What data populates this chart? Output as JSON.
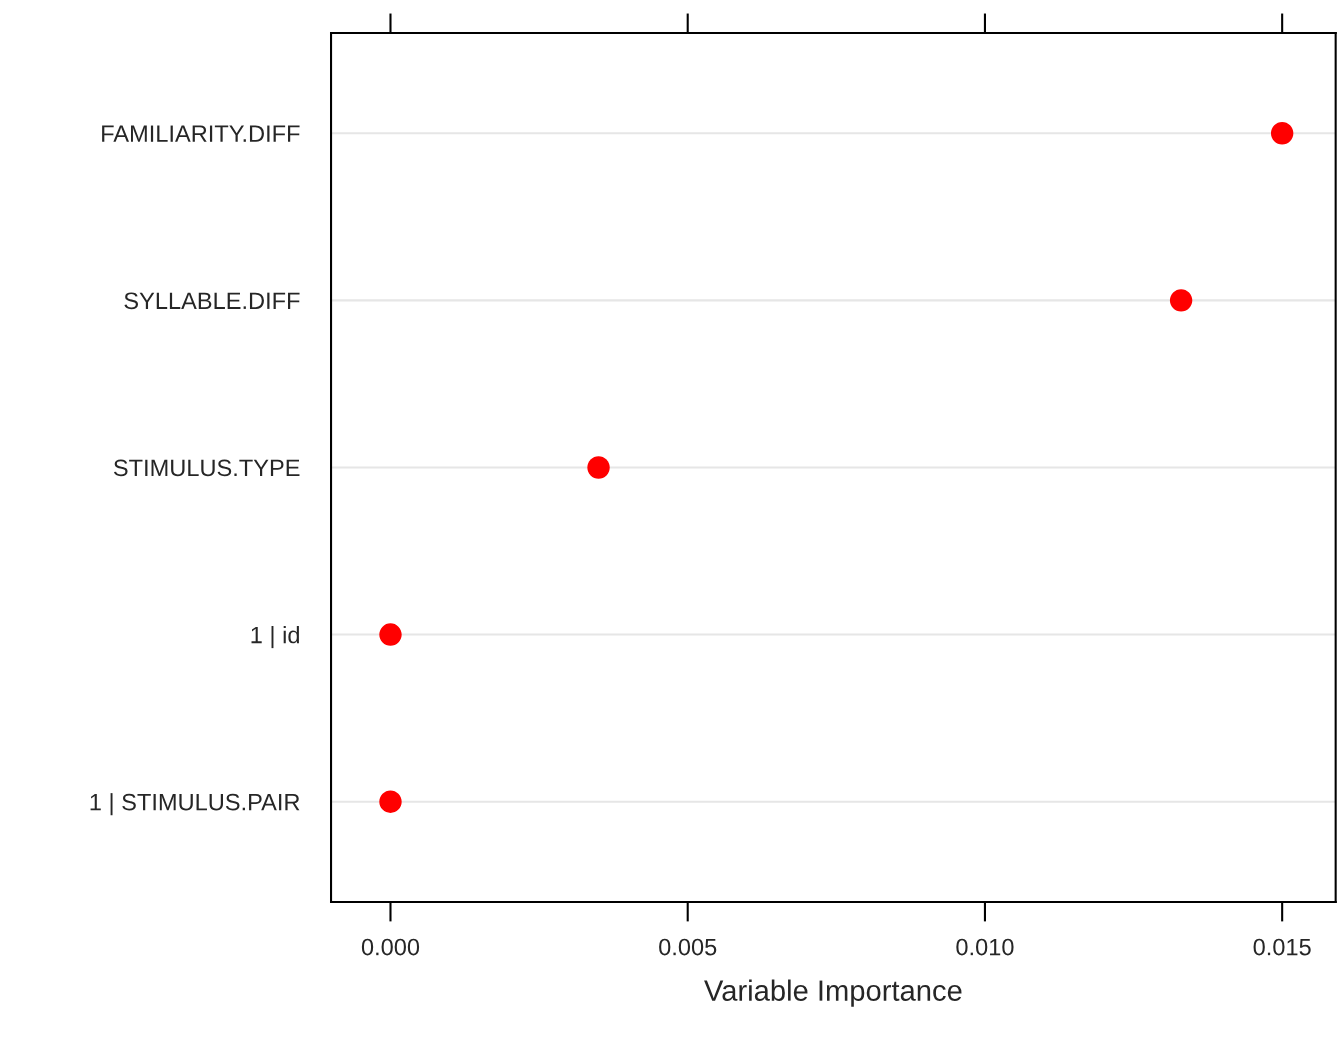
{
  "chart_data": {
    "type": "scatter",
    "orientation": "horizontal",
    "categories": [
      "FAMILIARITY.DIFF",
      "SYLLABLE.DIFF",
      "STIMULUS.TYPE",
      "1 | id",
      "1 | STIMULUS.PAIR"
    ],
    "series": [
      {
        "color": "#ff0000",
        "values": [
          0.015,
          0.0133,
          0.0035,
          0.0,
          0.0
        ]
      }
    ],
    "xlabel": "Variable Importance",
    "xlim": [
      -0.001,
      0.0159
    ],
    "xticks": [
      {
        "value": 0.0,
        "label": "0.000"
      },
      {
        "value": 0.005,
        "label": "0.005"
      },
      {
        "value": 0.01,
        "label": "0.010"
      },
      {
        "value": 0.015,
        "label": "0.015"
      }
    ],
    "grid": "y",
    "marker": "circle"
  }
}
